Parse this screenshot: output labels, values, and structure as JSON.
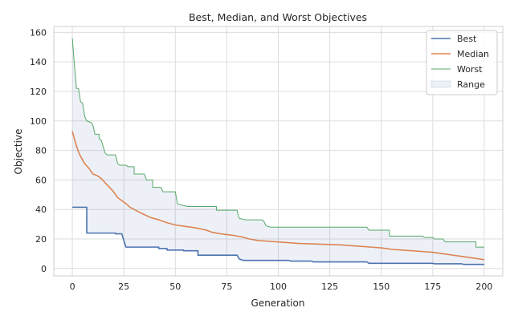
{
  "chart_data": {
    "type": "line",
    "title": "Best, Median, and Worst Objectives",
    "xlabel": "Generation",
    "ylabel": "Objective",
    "xlim": [
      -9,
      209
    ],
    "ylim": [
      -5,
      164
    ],
    "xticks": [
      0,
      25,
      50,
      75,
      100,
      125,
      150,
      175,
      200
    ],
    "yticks": [
      0,
      20,
      40,
      60,
      80,
      100,
      120,
      140,
      160
    ],
    "grid": true,
    "legend_position": "upper right",
    "legend": [
      "Best",
      "Median",
      "Worst",
      "Range"
    ],
    "series": [
      {
        "name": "Best",
        "color": "#4c72b0",
        "points": [
          [
            0,
            41.5
          ],
          [
            7,
            41.5
          ],
          [
            7,
            24
          ],
          [
            21,
            24
          ],
          [
            21,
            23.5
          ],
          [
            24,
            23.5
          ],
          [
            26,
            14.5
          ],
          [
            42,
            14.5
          ],
          [
            42,
            13.5
          ],
          [
            46,
            13.5
          ],
          [
            46,
            12.5
          ],
          [
            54,
            12.5
          ],
          [
            54,
            12
          ],
          [
            61,
            12
          ],
          [
            61,
            9
          ],
          [
            80,
            9
          ],
          [
            81,
            6.5
          ],
          [
            83,
            5.5
          ],
          [
            105,
            5.5
          ],
          [
            106,
            5
          ],
          [
            116,
            5
          ],
          [
            117,
            4.5
          ],
          [
            143,
            4.5
          ],
          [
            144,
            3.5
          ],
          [
            175,
            3.5
          ],
          [
            176,
            3.2
          ],
          [
            189,
            3.2
          ],
          [
            190,
            2.8
          ],
          [
            200,
            2.8
          ]
        ]
      },
      {
        "name": "Median",
        "color": "#dd8452",
        "points": [
          [
            0,
            93
          ],
          [
            1,
            88
          ],
          [
            2,
            83
          ],
          [
            3,
            79
          ],
          [
            4,
            76
          ],
          [
            6,
            71
          ],
          [
            8,
            68
          ],
          [
            10,
            64
          ],
          [
            12,
            63
          ],
          [
            14,
            61
          ],
          [
            16,
            58
          ],
          [
            18,
            55
          ],
          [
            20,
            52
          ],
          [
            22,
            48
          ],
          [
            24,
            46
          ],
          [
            26,
            44
          ],
          [
            28,
            41.5
          ],
          [
            30,
            40
          ],
          [
            32,
            38.5
          ],
          [
            35,
            36.5
          ],
          [
            38,
            34.5
          ],
          [
            42,
            33
          ],
          [
            46,
            31
          ],
          [
            50,
            29.5
          ],
          [
            55,
            28.5
          ],
          [
            60,
            27.5
          ],
          [
            65,
            26
          ],
          [
            68,
            24.5
          ],
          [
            72,
            23.5
          ],
          [
            78,
            22.5
          ],
          [
            82,
            21.5
          ],
          [
            86,
            20
          ],
          [
            90,
            19
          ],
          [
            95,
            18.5
          ],
          [
            100,
            18
          ],
          [
            110,
            17
          ],
          [
            120,
            16.5
          ],
          [
            130,
            16
          ],
          [
            140,
            15
          ],
          [
            145,
            14.5
          ],
          [
            150,
            14
          ],
          [
            155,
            13
          ],
          [
            160,
            12.5
          ],
          [
            170,
            11.5
          ],
          [
            175,
            11
          ],
          [
            180,
            10
          ],
          [
            185,
            9
          ],
          [
            190,
            8
          ],
          [
            195,
            7
          ],
          [
            200,
            6
          ]
        ]
      },
      {
        "name": "Worst",
        "color": "#55a868",
        "points": [
          [
            0,
            156
          ],
          [
            1,
            138
          ],
          [
            2,
            122
          ],
          [
            3,
            122
          ],
          [
            4,
            113
          ],
          [
            5,
            112
          ],
          [
            6,
            103
          ],
          [
            7,
            100
          ],
          [
            9,
            99
          ],
          [
            10,
            97
          ],
          [
            11,
            91
          ],
          [
            13,
            91
          ],
          [
            13,
            88
          ],
          [
            14,
            87
          ],
          [
            16,
            78
          ],
          [
            17,
            77
          ],
          [
            21,
            77
          ],
          [
            22,
            71
          ],
          [
            23,
            70
          ],
          [
            26,
            70
          ],
          [
            27,
            69
          ],
          [
            30,
            69
          ],
          [
            30,
            64
          ],
          [
            35,
            64
          ],
          [
            36,
            60
          ],
          [
            39,
            60
          ],
          [
            39,
            55
          ],
          [
            43,
            55
          ],
          [
            44,
            52
          ],
          [
            50,
            52
          ],
          [
            51,
            44
          ],
          [
            53,
            43
          ],
          [
            56,
            42
          ],
          [
            70,
            42
          ],
          [
            70,
            39.5
          ],
          [
            80,
            39.5
          ],
          [
            80,
            39
          ],
          [
            81,
            34
          ],
          [
            84,
            33
          ],
          [
            92,
            33
          ],
          [
            93,
            32
          ],
          [
            94,
            29
          ],
          [
            96,
            28
          ],
          [
            143,
            28
          ],
          [
            144,
            26
          ],
          [
            154,
            26
          ],
          [
            154,
            22
          ],
          [
            170,
            22
          ],
          [
            171,
            21
          ],
          [
            175,
            21
          ],
          [
            176,
            20
          ],
          [
            180,
            20
          ],
          [
            181,
            18
          ],
          [
            196,
            18
          ],
          [
            196,
            14.5
          ],
          [
            200,
            14.5
          ]
        ]
      }
    ]
  }
}
